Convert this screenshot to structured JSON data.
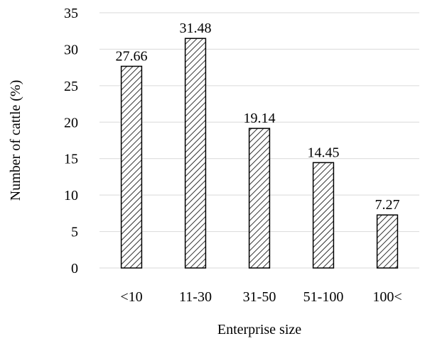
{
  "chart_data": {
    "type": "bar",
    "title": "",
    "xlabel": "Enterprise size",
    "ylabel": "Number of cattle (%)",
    "categories": [
      "<10",
      "11-30",
      "31-50",
      "51-100",
      "100<"
    ],
    "values": [
      27.66,
      31.48,
      19.14,
      14.45,
      7.27
    ],
    "data_labels": [
      "27.66",
      "31.48",
      "19.14",
      "14.45",
      "7.27"
    ],
    "ylim": [
      0,
      35
    ],
    "yticks": [
      0,
      5,
      10,
      15,
      20,
      25,
      30,
      35
    ],
    "grid": true,
    "legend": "none",
    "bar_fill": "diagonal-hatch",
    "colors": {
      "bar_stroke": "#000000",
      "grid": "#d9d9d9"
    }
  }
}
